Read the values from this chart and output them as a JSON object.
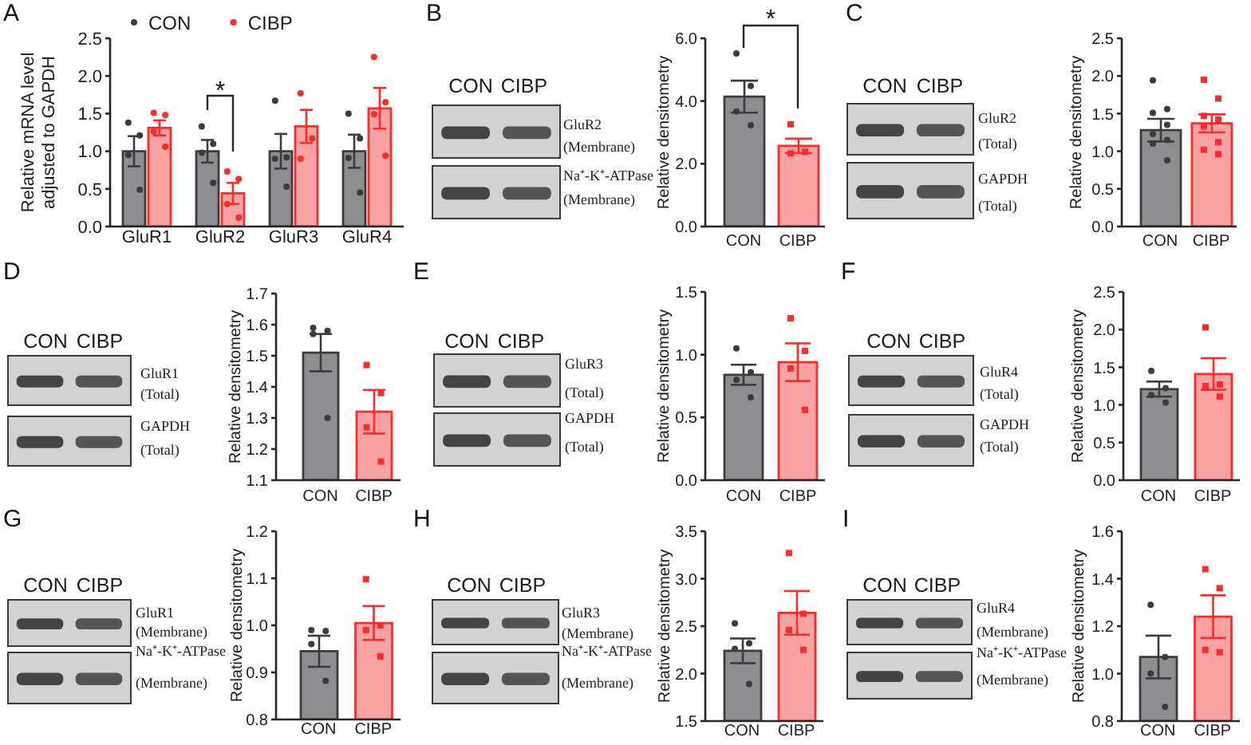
{
  "chart_data": [
    {
      "type": "bar",
      "title": "A",
      "ylabel": "Relative mRNA level adjusted to GAPDH",
      "categories": [
        "GluR1",
        "GluR2",
        "GluR3",
        "GluR4"
      ],
      "series": [
        {
          "type": "bar",
          "color": "#8e8e92",
          "values": [
            1.0,
            1.0,
            1.0,
            1.0
          ],
          "errors": [
            0.2,
            0.15,
            0.23,
            0.22
          ]
        },
        {
          "type": "bar",
          "color": "#f8a3a3",
          "values": [
            1.31,
            0.44,
            1.33,
            1.57
          ],
          "errors": [
            0.1,
            0.14,
            0.22,
            0.27
          ]
        },
        {
          "type": "scatter",
          "name": "CON",
          "color": "#3c3c3c",
          "marker": "circle",
          "x": [
            "GluR1",
            "GluR1",
            "GluR1",
            "GluR1",
            "GluR2",
            "GluR2",
            "GluR2",
            "GluR2",
            "GluR3",
            "GluR3",
            "GluR3",
            "GluR3",
            "GluR4",
            "GluR4",
            "GluR4",
            "GluR4"
          ],
          "values": [
            1.38,
            1.21,
            0.95,
            0.49,
            1.33,
            1.1,
            0.98,
            0.58,
            1.67,
            0.92,
            0.9,
            0.53,
            1.5,
            1.17,
            0.91,
            0.45
          ]
        },
        {
          "type": "scatter",
          "name": "CIBP",
          "color": "#ff2a2a",
          "marker": "circle",
          "x": [
            "GluR1",
            "GluR1",
            "GluR1",
            "GluR1",
            "GluR2",
            "GluR2",
            "GluR2",
            "GluR2",
            "GluR3",
            "GluR3",
            "GluR3",
            "GluR4",
            "GluR4",
            "GluR4",
            "GluR4"
          ],
          "values": [
            1.51,
            1.48,
            1.26,
            1.06,
            0.73,
            0.63,
            0.3,
            0.12,
            1.77,
            1.17,
            0.9,
            2.25,
            1.65,
            1.49,
            0.94
          ]
        }
      ],
      "ylim": [
        0,
        2.5
      ],
      "yticks": [
        {
          "value": 0,
          "label": "0.0"
        },
        0.5,
        {
          "value": 1,
          "label": "1.0"
        },
        1.5,
        {
          "value": 2,
          "label": "2.0"
        },
        2.5
      ],
      "legend": "top left",
      "annotations": [
        "*"
      ]
    },
    {
      "type": "other",
      "title": "B",
      "annotations": [
        "CON",
        "CIBP",
        "GluR2",
        "(Membrane)",
        "Na⁺-K⁺-ATPase",
        "(Membrane)"
      ]
    },
    {
      "type": "bar",
      "ylabel": "Relative densitometry",
      "categories": [
        "CON",
        "CIBP"
      ],
      "series": [
        {
          "type": "bar",
          "colors": [
            "#8e8e92",
            "#f8a3a3"
          ],
          "values": [
            4.14,
            2.57
          ],
          "errors": [
            0.51,
            0.23
          ]
        },
        {
          "type": "scatter",
          "color": "#3c3c3c",
          "marker": "circle",
          "x": [
            "CON",
            "CON",
            "CON",
            "CON"
          ],
          "values": [
            5.52,
            4.48,
            3.67,
            3.23
          ]
        },
        {
          "type": "scatter",
          "color": "#ff2a2a",
          "marker": "square",
          "x": [
            "CIBP",
            "CIBP",
            "CIBP"
          ],
          "values": [
            3.26,
            2.38,
            2.33
          ]
        }
      ],
      "ylim": [
        0,
        6
      ],
      "yticks": [
        {
          "value": 0,
          "label": "0.0"
        },
        {
          "value": 2,
          "label": "2.0"
        },
        {
          "value": 4,
          "label": "4.0"
        },
        {
          "value": 6,
          "label": "6.0"
        }
      ],
      "annotations": [
        "*"
      ]
    },
    {
      "type": "other",
      "title": "C",
      "annotations": [
        "CON",
        "CIBP",
        "GluR2",
        "(Total)",
        "GAPDH",
        "(Total)"
      ]
    },
    {
      "type": "bar",
      "ylabel": "Relative densitometry",
      "categories": [
        "CON",
        "CIBP"
      ],
      "series": [
        {
          "type": "bar",
          "colors": [
            "#8e8e92",
            "#f8a3a3"
          ],
          "values": [
            1.28,
            1.37
          ],
          "errors": [
            0.15,
            0.12
          ]
        },
        {
          "type": "scatter",
          "color": "#3c3c3c",
          "marker": "circle",
          "x": [
            "CON",
            "CON",
            "CON",
            "CON",
            "CON",
            "CON",
            "CON",
            "CON"
          ],
          "values": [
            1.94,
            1.56,
            1.51,
            1.35,
            1.23,
            1.15,
            1.1,
            0.88
          ]
        },
        {
          "type": "scatter",
          "color": "#ff2a2a",
          "marker": "square",
          "x": [
            "CIBP",
            "CIBP",
            "CIBP",
            "CIBP",
            "CIBP",
            "CIBP",
            "CIBP",
            "CIBP"
          ],
          "values": [
            1.95,
            1.7,
            1.47,
            1.42,
            1.33,
            1.12,
            1.02,
            0.96
          ]
        }
      ],
      "ylim": [
        0,
        2.5
      ],
      "yticks": [
        {
          "value": 0,
          "label": "0.0"
        },
        0.5,
        {
          "value": 1,
          "label": "1.0"
        },
        1.5,
        {
          "value": 2,
          "label": "2.0"
        },
        2.5
      ]
    },
    {
      "type": "other",
      "title": "D",
      "annotations": [
        "CON",
        "CIBP",
        "GluR1",
        "(Total)",
        "GAPDH",
        "(Total)"
      ]
    },
    {
      "type": "bar",
      "ylabel": "Relative densitometry",
      "categories": [
        "CON",
        "CIBP"
      ],
      "series": [
        {
          "type": "bar",
          "colors": [
            "#8e8e92",
            "#f8a3a3"
          ],
          "values": [
            1.51,
            1.32
          ],
          "errors": [
            0.06,
            0.07
          ]
        },
        {
          "type": "scatter",
          "color": "#3c3c3c",
          "marker": "circle",
          "x": [
            "CON",
            "CON",
            "CON",
            "CON"
          ],
          "values": [
            1.59,
            1.58,
            1.57,
            1.3
          ]
        },
        {
          "type": "scatter",
          "color": "#ff2a2a",
          "marker": "square",
          "x": [
            "CIBP",
            "CIBP",
            "CIBP",
            "CIBP"
          ],
          "values": [
            1.47,
            1.38,
            1.27,
            1.16
          ]
        }
      ],
      "ylim": [
        1.1,
        1.7
      ],
      "yticks": [
        1.1,
        1.2,
        1.3,
        1.4,
        1.5,
        1.6,
        1.7
      ]
    },
    {
      "type": "other",
      "title": "E",
      "annotations": [
        "CON",
        "CIBP",
        "GluR3",
        "(Total)",
        "GAPDH",
        "(Total)"
      ]
    },
    {
      "type": "bar",
      "ylabel": "Relative densitometry",
      "categories": [
        "CON",
        "CIBP"
      ],
      "series": [
        {
          "type": "bar",
          "colors": [
            "#8e8e92",
            "#f8a3a3"
          ],
          "values": [
            0.84,
            0.94
          ],
          "errors": [
            0.08,
            0.15
          ]
        },
        {
          "type": "scatter",
          "color": "#3c3c3c",
          "marker": "circle",
          "x": [
            "CON",
            "CON",
            "CON",
            "CON"
          ],
          "values": [
            1.05,
            0.86,
            0.8,
            0.66
          ]
        },
        {
          "type": "scatter",
          "color": "#ff2a2a",
          "marker": "square",
          "x": [
            "CIBP",
            "CIBP",
            "CIBP",
            "CIBP"
          ],
          "values": [
            1.29,
            1.03,
            0.89,
            0.56
          ]
        }
      ],
      "ylim": [
        0,
        1.5
      ],
      "yticks": [
        {
          "value": 0,
          "label": "0.0"
        },
        0.5,
        {
          "value": 1,
          "label": "1.0"
        },
        1.5
      ]
    },
    {
      "type": "other",
      "title": "F",
      "annotations": [
        "CON",
        "CIBP",
        "GluR4",
        "(Total)",
        "GAPDH",
        "(Total)"
      ]
    },
    {
      "type": "bar",
      "ylabel": "Relative densitometry",
      "categories": [
        "CON",
        "CIBP"
      ],
      "series": [
        {
          "type": "bar",
          "colors": [
            "#8e8e92",
            "#f8a3a3"
          ],
          "values": [
            1.21,
            1.41
          ],
          "errors": [
            0.1,
            0.21
          ]
        },
        {
          "type": "scatter",
          "color": "#3c3c3c",
          "marker": "circle",
          "x": [
            "CON",
            "CON",
            "CON",
            "CON"
          ],
          "values": [
            1.45,
            1.22,
            1.13,
            1.03
          ]
        },
        {
          "type": "scatter",
          "color": "#ff2a2a",
          "marker": "square",
          "x": [
            "CIBP",
            "CIBP",
            "CIBP",
            "CIBP"
          ],
          "values": [
            2.03,
            1.27,
            1.25,
            1.11
          ]
        }
      ],
      "ylim": [
        0,
        2.5
      ],
      "yticks": [
        {
          "value": 0,
          "label": "0.0"
        },
        0.5,
        {
          "value": 1,
          "label": "1.0"
        },
        1.5,
        {
          "value": 2,
          "label": "2.0"
        },
        2.5
      ]
    },
    {
      "type": "other",
      "title": "G",
      "annotations": [
        "CON",
        "CIBP",
        "GluR1",
        "(Membrane)",
        "Na⁺-K⁺-ATPase",
        "(Membrane)"
      ]
    },
    {
      "type": "bar",
      "ylabel": "Relative densitometry",
      "categories": [
        "CON",
        "CIBP"
      ],
      "series": [
        {
          "type": "bar",
          "colors": [
            "#8e8e92",
            "#f8a3a3"
          ],
          "values": [
            0.945,
            1.005
          ],
          "errors": [
            0.033,
            0.036
          ]
        },
        {
          "type": "scatter",
          "color": "#3c3c3c",
          "marker": "circle",
          "x": [
            "CON",
            "CON",
            "CON",
            "CON"
          ],
          "values": [
            0.99,
            0.988,
            0.96,
            0.882
          ]
        },
        {
          "type": "scatter",
          "color": "#ff2a2a",
          "marker": "square",
          "x": [
            "CIBP",
            "CIBP",
            "CIBP",
            "CIBP"
          ],
          "values": [
            1.098,
            1.0,
            0.99,
            0.934
          ]
        }
      ],
      "ylim": [
        0.8,
        1.2
      ],
      "yticks": [
        0.8,
        0.9,
        {
          "value": 1,
          "label": "1.0"
        },
        1.1,
        1.2
      ]
    },
    {
      "type": "other",
      "title": "H",
      "annotations": [
        "CON",
        "CIBP",
        "GluR3",
        "(Membrane)",
        "Na⁺-K⁺-ATPase",
        "(Membrane)"
      ]
    },
    {
      "type": "bar",
      "ylabel": "Relative densitometry",
      "categories": [
        "CON",
        "CIBP"
      ],
      "series": [
        {
          "type": "bar",
          "colors": [
            "#8e8e92",
            "#f8a3a3"
          ],
          "values": [
            2.24,
            2.64
          ],
          "errors": [
            0.13,
            0.23
          ]
        },
        {
          "type": "scatter",
          "color": "#3c3c3c",
          "marker": "circle",
          "x": [
            "CON",
            "CON",
            "CON",
            "CON"
          ],
          "values": [
            2.53,
            2.32,
            2.26,
            1.89
          ]
        },
        {
          "type": "scatter",
          "color": "#ff2a2a",
          "marker": "square",
          "x": [
            "CIBP",
            "CIBP",
            "CIBP",
            "CIBP"
          ],
          "values": [
            3.27,
            2.63,
            2.46,
            2.25
          ]
        }
      ],
      "ylim": [
        1.5,
        3.5
      ],
      "yticks": [
        1.5,
        {
          "value": 2,
          "label": "2.0"
        },
        2.5,
        {
          "value": 3,
          "label": "3.0"
        },
        3.5
      ]
    },
    {
      "type": "other",
      "title": "I",
      "annotations": [
        "CON",
        "CIBP",
        "GluR4",
        "(Membrane)",
        "Na⁺-K⁺-ATPase",
        "(Membrane)"
      ]
    },
    {
      "type": "bar",
      "ylabel": "Relative densitometry",
      "categories": [
        "CON",
        "CIBP"
      ],
      "series": [
        {
          "type": "bar",
          "colors": [
            "#8e8e92",
            "#f8a3a3"
          ],
          "values": [
            1.07,
            1.24
          ],
          "errors": [
            0.09,
            0.09
          ]
        },
        {
          "type": "scatter",
          "color": "#3c3c3c",
          "marker": "circle",
          "x": [
            "CON",
            "CON",
            "CON",
            "CON"
          ],
          "values": [
            1.29,
            1.07,
            1.0,
            0.86
          ]
        },
        {
          "type": "scatter",
          "color": "#ff2a2a",
          "marker": "square",
          "x": [
            "CIBP",
            "CIBP",
            "CIBP",
            "CIBP"
          ],
          "values": [
            1.44,
            1.36,
            1.1,
            1.09
          ]
        }
      ],
      "ylim": [
        0.8,
        1.6
      ],
      "yticks": [
        0.8,
        {
          "value": 1,
          "label": "1.0"
        },
        1.2,
        1.4,
        1.6
      ]
    }
  ]
}
